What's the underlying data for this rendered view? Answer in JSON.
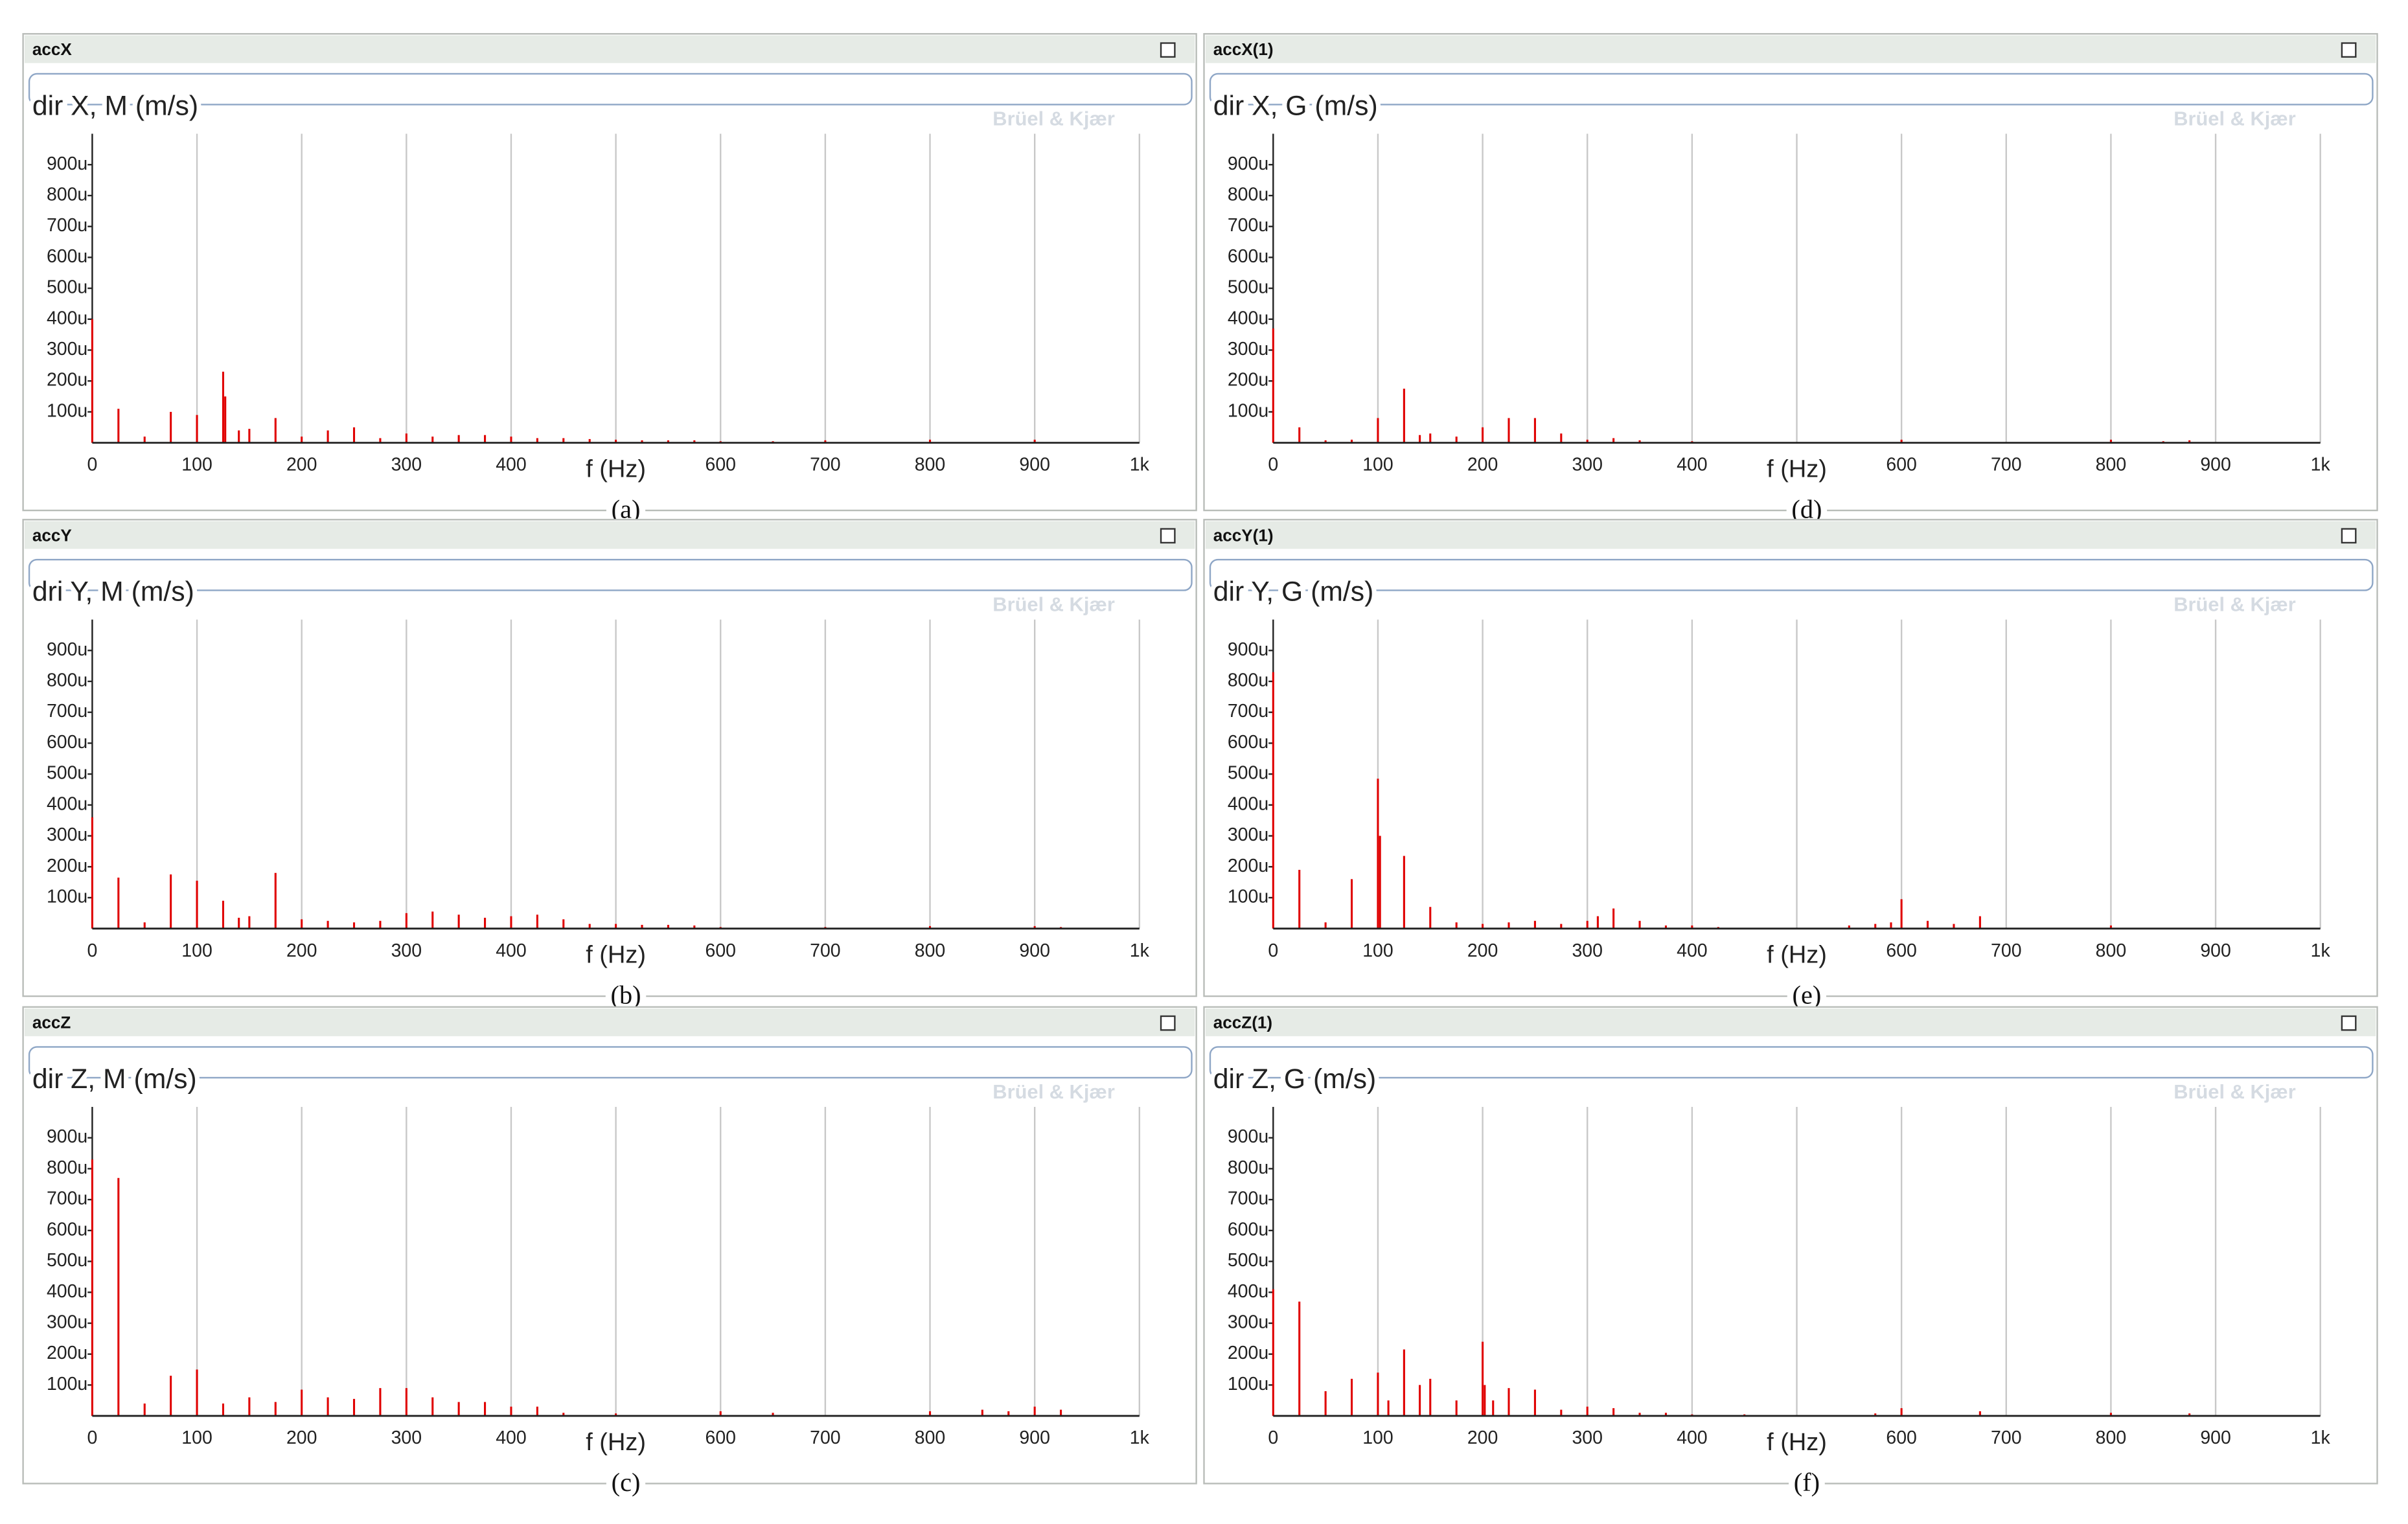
{
  "chart_data": [
    {
      "type": "stem",
      "panel_title": "accX",
      "title": "dir X, M (m/s)",
      "watermark": "Brüel & Kjær",
      "x_label": "f (Hz)",
      "caption": "(a)",
      "color": "#e00000",
      "grid": "x",
      "xlim": [
        0,
        1000
      ],
      "ylim": [
        0,
        1000
      ],
      "xticks": [
        0,
        100,
        200,
        300,
        400,
        {
          "value": 500,
          "label": null
        },
        600,
        700,
        800,
        900,
        {
          "value": 1000,
          "label": "1k"
        }
      ],
      "yticks": [
        {
          "value": 100,
          "label": "100u"
        },
        {
          "value": 200,
          "label": "200u"
        },
        {
          "value": 300,
          "label": "300u"
        },
        {
          "value": 400,
          "label": "400u"
        },
        {
          "value": 500,
          "label": "500u"
        },
        {
          "value": 600,
          "label": "600u"
        },
        {
          "value": 700,
          "label": "700u"
        },
        {
          "value": 800,
          "label": "800u"
        },
        {
          "value": 900,
          "label": "900u"
        }
      ],
      "x": [
        0,
        25,
        50,
        75,
        100,
        125,
        127,
        140,
        150,
        175,
        200,
        225,
        250,
        275,
        300,
        325,
        350,
        375,
        400,
        425,
        450,
        475,
        500,
        525,
        550,
        575,
        600,
        650,
        700,
        800,
        900
      ],
      "values": [
        400,
        110,
        20,
        100,
        90,
        230,
        150,
        40,
        45,
        80,
        20,
        40,
        50,
        15,
        30,
        20,
        25,
        25,
        20,
        15,
        15,
        12,
        10,
        8,
        8,
        8,
        5,
        5,
        8,
        10,
        10
      ]
    },
    {
      "type": "stem",
      "panel_title": "accY",
      "title": "dri Y, M  (m/s)",
      "watermark": "Brüel & Kjær",
      "x_label": "f (Hz)",
      "caption": "(b)",
      "color": "#e00000",
      "grid": "x",
      "xlim": [
        0,
        1000
      ],
      "ylim": [
        0,
        1000
      ],
      "xticks": [
        0,
        100,
        200,
        300,
        400,
        {
          "value": 500,
          "label": null
        },
        600,
        700,
        800,
        900,
        {
          "value": 1000,
          "label": "1k"
        }
      ],
      "yticks": [
        {
          "value": 100,
          "label": "100u"
        },
        {
          "value": 200,
          "label": "200u"
        },
        {
          "value": 300,
          "label": "300u"
        },
        {
          "value": 400,
          "label": "400u"
        },
        {
          "value": 500,
          "label": "500u"
        },
        {
          "value": 600,
          "label": "600u"
        },
        {
          "value": 700,
          "label": "700u"
        },
        {
          "value": 800,
          "label": "800u"
        },
        {
          "value": 900,
          "label": "900u"
        }
      ],
      "x": [
        0,
        25,
        50,
        75,
        100,
        125,
        140,
        150,
        175,
        200,
        225,
        250,
        275,
        300,
        325,
        350,
        375,
        400,
        425,
        450,
        475,
        500,
        525,
        550,
        575,
        600,
        700,
        800,
        900,
        925
      ],
      "values": [
        360,
        165,
        20,
        175,
        155,
        90,
        35,
        40,
        180,
        30,
        25,
        20,
        25,
        50,
        55,
        45,
        35,
        40,
        45,
        30,
        15,
        15,
        12,
        12,
        10,
        5,
        5,
        8,
        8,
        5
      ]
    },
    {
      "type": "stem",
      "panel_title": "accZ",
      "title": "dir Z, M  (m/s)",
      "watermark": "Brüel & Kjær",
      "x_label": "f (Hz)",
      "caption": "(c)",
      "color": "#e00000",
      "grid": "x",
      "xlim": [
        0,
        1000
      ],
      "ylim": [
        0,
        1000
      ],
      "xticks": [
        0,
        100,
        200,
        300,
        400,
        {
          "value": 500,
          "label": null
        },
        600,
        700,
        800,
        900,
        {
          "value": 1000,
          "label": "1k"
        }
      ],
      "yticks": [
        {
          "value": 100,
          "label": "100u"
        },
        {
          "value": 200,
          "label": "200u"
        },
        {
          "value": 300,
          "label": "300u"
        },
        {
          "value": 400,
          "label": "400u"
        },
        {
          "value": 500,
          "label": "500u"
        },
        {
          "value": 600,
          "label": "600u"
        },
        {
          "value": 700,
          "label": "700u"
        },
        {
          "value": 800,
          "label": "800u"
        },
        {
          "value": 900,
          "label": "900u"
        }
      ],
      "x": [
        0,
        25,
        50,
        75,
        100,
        125,
        150,
        175,
        200,
        225,
        250,
        275,
        300,
        325,
        350,
        375,
        400,
        425,
        450,
        500,
        600,
        650,
        800,
        850,
        875,
        900,
        925
      ],
      "values": [
        830,
        770,
        40,
        130,
        150,
        40,
        60,
        45,
        85,
        60,
        55,
        90,
        90,
        60,
        45,
        45,
        30,
        30,
        10,
        8,
        15,
        10,
        15,
        20,
        15,
        30,
        20
      ]
    },
    {
      "type": "stem",
      "panel_title": "accX(1)",
      "title": "dir X, G  (m/s)",
      "watermark": "Brüel & Kjær",
      "x_label": "f (Hz)",
      "caption": "(d)",
      "color": "#e00000",
      "grid": "x",
      "xlim": [
        0,
        1000
      ],
      "ylim": [
        0,
        1000
      ],
      "xticks": [
        0,
        100,
        200,
        300,
        400,
        {
          "value": 500,
          "label": null
        },
        600,
        700,
        800,
        900,
        {
          "value": 1000,
          "label": "1k"
        }
      ],
      "yticks": [
        {
          "value": 100,
          "label": "100u"
        },
        {
          "value": 200,
          "label": "200u"
        },
        {
          "value": 300,
          "label": "300u"
        },
        {
          "value": 400,
          "label": "400u"
        },
        {
          "value": 500,
          "label": "500u"
        },
        {
          "value": 600,
          "label": "600u"
        },
        {
          "value": 700,
          "label": "700u"
        },
        {
          "value": 800,
          "label": "800u"
        },
        {
          "value": 900,
          "label": "900u"
        }
      ],
      "x": [
        0,
        25,
        50,
        75,
        100,
        125,
        140,
        150,
        175,
        200,
        225,
        250,
        275,
        300,
        325,
        350,
        400,
        600,
        800,
        850,
        875
      ],
      "values": [
        370,
        50,
        8,
        10,
        80,
        175,
        25,
        30,
        20,
        50,
        80,
        80,
        30,
        10,
        15,
        8,
        5,
        10,
        10,
        5,
        8
      ]
    },
    {
      "type": "stem",
      "panel_title": "accY(1)",
      "title": "dir Y, G  (m/s)",
      "watermark": "Brüel & Kjær",
      "x_label": "f (Hz)",
      "caption": "(e)",
      "color": "#e00000",
      "grid": "x",
      "xlim": [
        0,
        1000
      ],
      "ylim": [
        0,
        1000
      ],
      "xticks": [
        0,
        100,
        200,
        300,
        400,
        {
          "value": 500,
          "label": null
        },
        600,
        700,
        800,
        900,
        {
          "value": 1000,
          "label": "1k"
        }
      ],
      "yticks": [
        {
          "value": 100,
          "label": "100u"
        },
        {
          "value": 200,
          "label": "200u"
        },
        {
          "value": 300,
          "label": "300u"
        },
        {
          "value": 400,
          "label": "400u"
        },
        {
          "value": 500,
          "label": "500u"
        },
        {
          "value": 600,
          "label": "600u"
        },
        {
          "value": 700,
          "label": "700u"
        },
        {
          "value": 800,
          "label": "800u"
        },
        {
          "value": 900,
          "label": "900u"
        }
      ],
      "x": [
        0,
        25,
        50,
        75,
        100,
        102,
        125,
        150,
        175,
        200,
        225,
        250,
        275,
        300,
        310,
        325,
        350,
        375,
        400,
        425,
        550,
        575,
        590,
        600,
        625,
        650,
        675,
        800
      ],
      "values": [
        830,
        190,
        20,
        160,
        485,
        300,
        235,
        70,
        20,
        15,
        20,
        25,
        15,
        25,
        40,
        65,
        25,
        10,
        10,
        5,
        10,
        15,
        20,
        95,
        25,
        15,
        40,
        10
      ]
    },
    {
      "type": "stem",
      "panel_title": "accZ(1)",
      "title": "dir Z, G  (m/s)",
      "watermark": "Brüel & Kjær",
      "x_label": "f (Hz)",
      "caption": "(f)",
      "color": "#e00000",
      "grid": "x",
      "xlim": [
        0,
        1000
      ],
      "ylim": [
        0,
        1000
      ],
      "xticks": [
        0,
        100,
        200,
        300,
        400,
        {
          "value": 500,
          "label": null
        },
        600,
        700,
        800,
        900,
        {
          "value": 1000,
          "label": "1k"
        }
      ],
      "yticks": [
        {
          "value": 100,
          "label": "100u"
        },
        {
          "value": 200,
          "label": "200u"
        },
        {
          "value": 300,
          "label": "300u"
        },
        {
          "value": 400,
          "label": "400u"
        },
        {
          "value": 500,
          "label": "500u"
        },
        {
          "value": 600,
          "label": "600u"
        },
        {
          "value": 700,
          "label": "700u"
        },
        {
          "value": 800,
          "label": "800u"
        },
        {
          "value": 900,
          "label": "900u"
        }
      ],
      "x": [
        0,
        25,
        50,
        75,
        100,
        110,
        125,
        140,
        150,
        175,
        200,
        202,
        210,
        225,
        250,
        275,
        300,
        325,
        350,
        375,
        400,
        450,
        575,
        600,
        675,
        800,
        875
      ],
      "values": [
        410,
        370,
        80,
        120,
        140,
        50,
        215,
        100,
        120,
        50,
        240,
        100,
        50,
        90,
        85,
        20,
        30,
        25,
        10,
        10,
        5,
        5,
        8,
        25,
        15,
        10,
        8
      ]
    }
  ]
}
